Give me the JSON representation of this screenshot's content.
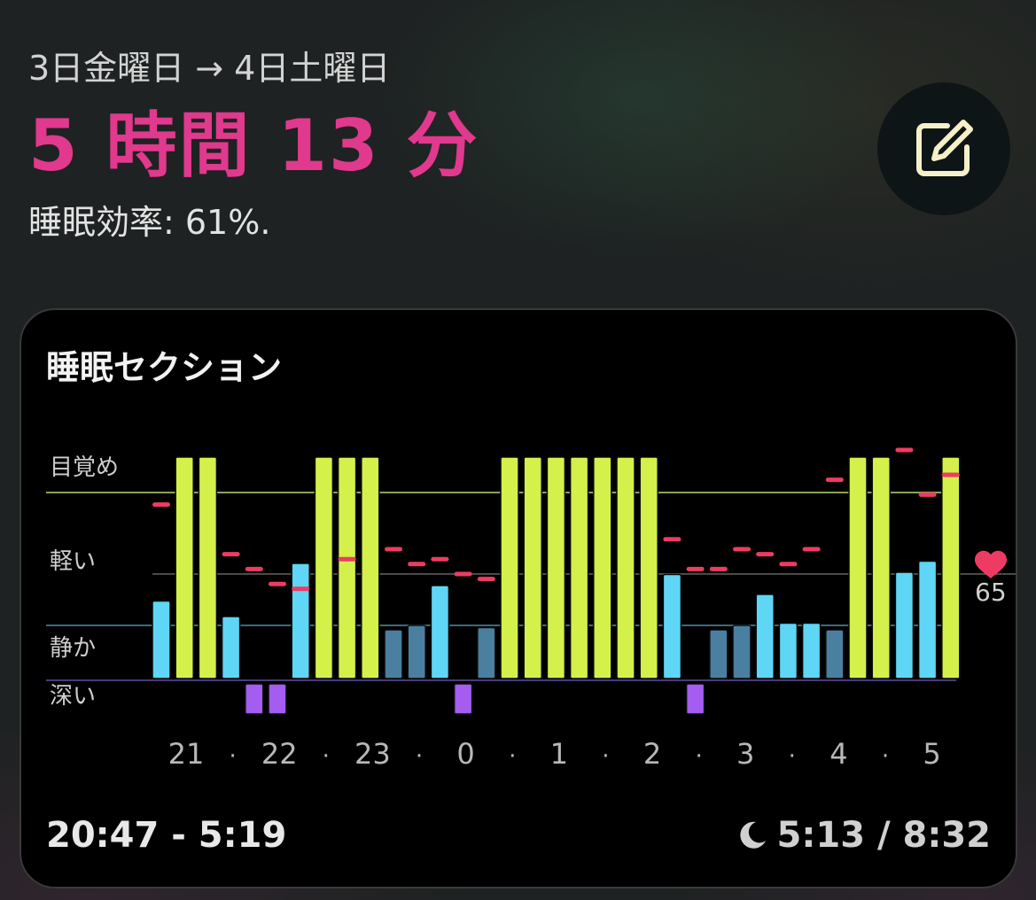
{
  "header": {
    "date_range": "3日金曜日 → 4日土曜日",
    "duration": "5 時間 13 分",
    "efficiency": "睡眠効率: 61%."
  },
  "edit_button": {
    "icon": "edit-icon",
    "color": "#f5f0c8"
  },
  "card": {
    "title": "睡眠セクション",
    "time_range": "20:47 - 5:19",
    "sleep_ratio": "5:13 / 8:32",
    "ratio_icon": "moon-icon"
  },
  "heart_rate": {
    "value": "65",
    "icon": "heart-icon"
  },
  "chart_data": {
    "type": "bar",
    "title": "睡眠セクション",
    "y_categories": [
      "目覚め",
      "軽い",
      "静か",
      "深い"
    ],
    "x_tick_labels": [
      "21",
      "·",
      "22",
      "·",
      "23",
      "·",
      "0",
      "·",
      "1",
      "·",
      "2",
      "·",
      "3",
      "·",
      "4",
      "·",
      "5"
    ],
    "stage_colors": {
      "awake": "#d4f04a",
      "light": "#5fd6f5",
      "quiet": "#4a7fa0",
      "deep": "#a55cf0",
      "heart_marker": "#ee3b63"
    },
    "bars": [
      {
        "stage": "light",
        "level": 0.35
      },
      {
        "stage": "awake",
        "level": 1.0
      },
      {
        "stage": "awake",
        "level": 1.0
      },
      {
        "stage": "light",
        "level": 0.28
      },
      {
        "stage": "deep",
        "level": 0.15
      },
      {
        "stage": "deep",
        "level": 0.15
      },
      {
        "stage": "light",
        "level": 0.52
      },
      {
        "stage": "awake",
        "level": 1.0
      },
      {
        "stage": "awake",
        "level": 1.0
      },
      {
        "stage": "awake",
        "level": 1.0
      },
      {
        "stage": "quiet",
        "level": 0.22
      },
      {
        "stage": "quiet",
        "level": 0.24
      },
      {
        "stage": "light",
        "level": 0.42
      },
      {
        "stage": "deep",
        "level": 0.15
      },
      {
        "stage": "quiet",
        "level": 0.23
      },
      {
        "stage": "awake",
        "level": 1.0
      },
      {
        "stage": "awake",
        "level": 1.0
      },
      {
        "stage": "awake",
        "level": 1.0
      },
      {
        "stage": "awake",
        "level": 1.0
      },
      {
        "stage": "awake",
        "level": 1.0
      },
      {
        "stage": "awake",
        "level": 1.0
      },
      {
        "stage": "awake",
        "level": 1.0
      },
      {
        "stage": "light",
        "level": 0.47
      },
      {
        "stage": "deep",
        "level": 0.15
      },
      {
        "stage": "quiet",
        "level": 0.22
      },
      {
        "stage": "quiet",
        "level": 0.24
      },
      {
        "stage": "light",
        "level": 0.38
      },
      {
        "stage": "light",
        "level": 0.25
      },
      {
        "stage": "light",
        "level": 0.25
      },
      {
        "stage": "quiet",
        "level": 0.22
      },
      {
        "stage": "awake",
        "level": 1.0
      },
      {
        "stage": "awake",
        "level": 1.0
      },
      {
        "stage": "light",
        "level": 0.48
      },
      {
        "stage": "light",
        "level": 0.53
      },
      {
        "stage": "awake",
        "level": 1.0
      }
    ],
    "heart_rate": [
      79,
      null,
      null,
      69,
      66,
      63,
      62,
      null,
      68,
      null,
      70,
      67,
      68,
      65,
      64,
      null,
      null,
      null,
      null,
      null,
      null,
      null,
      72,
      66,
      66,
      70,
      69,
      67,
      70,
      84,
      null,
      null,
      90,
      81,
      85
    ],
    "heart_rate_reference": 65,
    "grid": true
  }
}
